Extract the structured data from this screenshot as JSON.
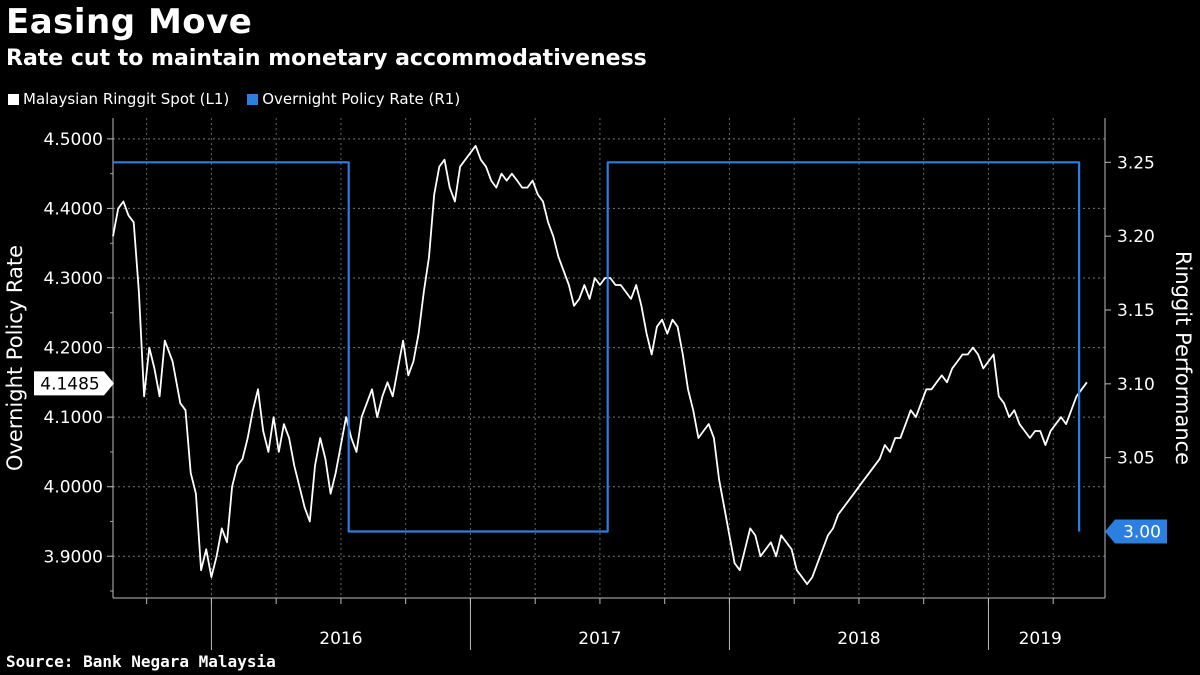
{
  "header": {
    "title": "Easing Move",
    "subtitle": "Rate cut to maintain monetary accommodativeness"
  },
  "legend": [
    {
      "label": "Malaysian Ringgit Spot (L1)",
      "color": "#ffffff"
    },
    {
      "label": "Overnight Policy Rate (R1)",
      "color": "#2a7fe0"
    }
  ],
  "footer": {
    "source": "Source: Bank Negara Malaysia"
  },
  "chart_data": {
    "type": "line",
    "title": "Easing Move",
    "subtitle": "Rate cut to maintain monetary accommodativeness",
    "left_axis": {
      "label": "Overnight Policy Rate",
      "range": [
        3.84,
        4.53
      ],
      "ticks": [
        3.9,
        4.0,
        4.1,
        4.2,
        4.3,
        4.4,
        4.5
      ],
      "tick_labels": [
        "3.9000",
        "4.0000",
        "4.1000",
        "4.2000",
        "4.3000",
        "4.4000",
        "4.5000"
      ],
      "last_value_label": "4.1485",
      "last_value": 4.1485
    },
    "right_axis": {
      "label": "Ringgit Performance",
      "range": [
        2.955,
        3.28
      ],
      "ticks": [
        3.05,
        3.1,
        3.15,
        3.2,
        3.25
      ],
      "tick_labels": [
        "3.05",
        "3.10",
        "3.15",
        "3.20",
        "3.25"
      ],
      "last_value_label": "3.00",
      "last_value": 3.0
    },
    "x_axis": {
      "range": [
        2015.62,
        2019.45
      ],
      "year_labels": [
        {
          "label": "2016",
          "center": 2016.5
        },
        {
          "label": "2017",
          "center": 2017.5
        },
        {
          "label": "2018",
          "center": 2018.5
        },
        {
          "label": "2019",
          "center": 2019.2
        }
      ],
      "year_boundaries": [
        2016.0,
        2017.0,
        2018.0,
        2019.0
      ],
      "gridlines": [
        2015.75,
        2016.0,
        2016.25,
        2016.5,
        2016.75,
        2017.0,
        2017.25,
        2017.5,
        2017.75,
        2018.0,
        2018.25,
        2018.5,
        2018.75,
        2019.0,
        2019.25
      ]
    },
    "series": [
      {
        "name": "Malaysian Ringgit Spot (L1)",
        "axis": "left",
        "color": "#ffffff",
        "x": [
          2015.62,
          2015.64,
          2015.66,
          2015.68,
          2015.7,
          2015.72,
          2015.74,
          2015.76,
          2015.78,
          2015.8,
          2015.82,
          2015.85,
          2015.88,
          2015.9,
          2015.92,
          2015.94,
          2015.96,
          2015.98,
          2016.0,
          2016.02,
          2016.04,
          2016.06,
          2016.08,
          2016.1,
          2016.12,
          2016.14,
          2016.16,
          2016.18,
          2016.2,
          2016.22,
          2016.24,
          2016.26,
          2016.28,
          2016.3,
          2016.32,
          2016.34,
          2016.36,
          2016.38,
          2016.4,
          2016.42,
          2016.44,
          2016.46,
          2016.48,
          2016.5,
          2016.52,
          2016.54,
          2016.56,
          2016.58,
          2016.6,
          2016.62,
          2016.64,
          2016.66,
          2016.68,
          2016.7,
          2016.72,
          2016.74,
          2016.76,
          2016.78,
          2016.8,
          2016.82,
          2016.84,
          2016.86,
          2016.88,
          2016.9,
          2016.92,
          2016.94,
          2016.96,
          2016.98,
          2017.0,
          2017.02,
          2017.04,
          2017.06,
          2017.08,
          2017.1,
          2017.12,
          2017.14,
          2017.16,
          2017.18,
          2017.2,
          2017.22,
          2017.24,
          2017.26,
          2017.28,
          2017.3,
          2017.32,
          2017.34,
          2017.36,
          2017.38,
          2017.4,
          2017.42,
          2017.44,
          2017.46,
          2017.48,
          2017.5,
          2017.52,
          2017.54,
          2017.56,
          2017.58,
          2017.6,
          2017.62,
          2017.64,
          2017.66,
          2017.68,
          2017.7,
          2017.72,
          2017.74,
          2017.76,
          2017.78,
          2017.8,
          2017.82,
          2017.84,
          2017.86,
          2017.88,
          2017.9,
          2017.92,
          2017.94,
          2017.96,
          2017.98,
          2018.0,
          2018.02,
          2018.04,
          2018.06,
          2018.08,
          2018.1,
          2018.12,
          2018.14,
          2018.16,
          2018.18,
          2018.2,
          2018.22,
          2018.24,
          2018.26,
          2018.28,
          2018.3,
          2018.32,
          2018.34,
          2018.36,
          2018.38,
          2018.4,
          2018.42,
          2018.44,
          2018.46,
          2018.48,
          2018.5,
          2018.52,
          2018.54,
          2018.56,
          2018.58,
          2018.6,
          2018.62,
          2018.64,
          2018.66,
          2018.68,
          2018.7,
          2018.72,
          2018.74,
          2018.76,
          2018.78,
          2018.8,
          2018.82,
          2018.84,
          2018.86,
          2018.88,
          2018.9,
          2018.92,
          2018.94,
          2018.96,
          2018.98,
          2019.0,
          2019.02,
          2019.04,
          2019.06,
          2019.08,
          2019.1,
          2019.12,
          2019.14,
          2019.16,
          2019.18,
          2019.2,
          2019.22,
          2019.24,
          2019.26,
          2019.28,
          2019.3,
          2019.32,
          2019.34,
          2019.36,
          2019.38
        ],
        "values": [
          4.36,
          4.4,
          4.41,
          4.39,
          4.38,
          4.28,
          4.13,
          4.2,
          4.17,
          4.13,
          4.21,
          4.18,
          4.12,
          4.11,
          4.02,
          3.99,
          3.88,
          3.91,
          3.87,
          3.9,
          3.94,
          3.92,
          4.0,
          4.03,
          4.04,
          4.07,
          4.11,
          4.14,
          4.08,
          4.05,
          4.1,
          4.05,
          4.09,
          4.07,
          4.03,
          4.0,
          3.97,
          3.95,
          4.03,
          4.07,
          4.04,
          3.99,
          4.02,
          4.06,
          4.1,
          4.07,
          4.05,
          4.1,
          4.12,
          4.14,
          4.1,
          4.13,
          4.15,
          4.13,
          4.17,
          4.21,
          4.16,
          4.18,
          4.22,
          4.28,
          4.33,
          4.42,
          4.46,
          4.47,
          4.43,
          4.41,
          4.46,
          4.47,
          4.48,
          4.49,
          4.47,
          4.46,
          4.44,
          4.43,
          4.45,
          4.44,
          4.45,
          4.44,
          4.43,
          4.43,
          4.44,
          4.42,
          4.41,
          4.38,
          4.36,
          4.33,
          4.31,
          4.29,
          4.26,
          4.27,
          4.29,
          4.27,
          4.3,
          4.29,
          4.3,
          4.3,
          4.29,
          4.29,
          4.28,
          4.27,
          4.29,
          4.26,
          4.22,
          4.19,
          4.23,
          4.24,
          4.22,
          4.24,
          4.23,
          4.19,
          4.14,
          4.11,
          4.07,
          4.08,
          4.09,
          4.07,
          4.01,
          3.97,
          3.93,
          3.89,
          3.88,
          3.91,
          3.94,
          3.93,
          3.9,
          3.91,
          3.92,
          3.9,
          3.93,
          3.92,
          3.91,
          3.88,
          3.87,
          3.86,
          3.87,
          3.89,
          3.91,
          3.93,
          3.94,
          3.96,
          3.97,
          3.98,
          3.99,
          4.0,
          4.01,
          4.02,
          4.03,
          4.04,
          4.06,
          4.05,
          4.07,
          4.07,
          4.09,
          4.11,
          4.1,
          4.12,
          4.14,
          4.14,
          4.15,
          4.16,
          4.15,
          4.17,
          4.18,
          4.19,
          4.19,
          4.2,
          4.19,
          4.17,
          4.18,
          4.19,
          4.13,
          4.12,
          4.1,
          4.11,
          4.09,
          4.08,
          4.07,
          4.08,
          4.08,
          4.06,
          4.08,
          4.09,
          4.1,
          4.09,
          4.11,
          4.13,
          4.14,
          4.15
        ]
      },
      {
        "name": "Overnight Policy Rate (R1)",
        "axis": "right",
        "color": "#2a7fe0",
        "x": [
          2015.62,
          2016.53,
          2016.53,
          2017.53,
          2017.53,
          2019.35,
          2019.35
        ],
        "values": [
          3.25,
          3.25,
          3.0,
          3.0,
          3.25,
          3.25,
          3.0
        ]
      }
    ]
  }
}
